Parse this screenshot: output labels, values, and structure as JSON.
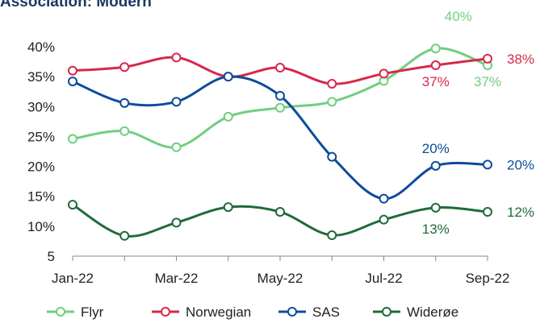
{
  "chart_data": {
    "type": "line",
    "title": "Association: Modern",
    "categories": [
      "Jan-22",
      null,
      "Mar-22",
      null,
      "May-22",
      null,
      "Jul-22",
      null,
      "Sep-22"
    ],
    "ylim": [
      5,
      40
    ],
    "yticks": [
      5,
      {
        "value": 10,
        "label": "10%"
      },
      {
        "value": 15,
        "label": "15%"
      },
      {
        "value": 20,
        "label": "20%"
      },
      {
        "value": 25,
        "label": "25%"
      },
      {
        "value": 30,
        "label": "30%"
      },
      {
        "value": 35,
        "label": "35%"
      },
      {
        "value": 40,
        "label": "40%"
      }
    ],
    "grid": false,
    "legend": "bottom",
    "series": [
      {
        "name": "Flyr",
        "color": "#6fcf7f",
        "values": [
          24.6,
          25.9,
          23.2,
          28.3,
          29.8,
          30.8,
          34.3,
          39.7,
          36.9
        ],
        "value_labels": [
          null,
          null,
          null,
          null,
          null,
          null,
          null,
          "40%",
          "37%"
        ]
      },
      {
        "name": "Norwegian",
        "color": "#d6294a",
        "values": [
          36.0,
          36.6,
          38.2,
          35.0,
          36.5,
          33.8,
          35.5,
          36.9,
          38.0
        ],
        "value_labels": [
          null,
          null,
          null,
          null,
          null,
          null,
          null,
          "37%",
          "38%"
        ]
      },
      {
        "name": "SAS",
        "color": "#0e4c99",
        "values": [
          34.2,
          30.6,
          30.8,
          35.0,
          31.8,
          21.6,
          14.6,
          20.1,
          20.3
        ],
        "value_labels": [
          null,
          null,
          null,
          null,
          null,
          null,
          null,
          "20%",
          "20%"
        ]
      },
      {
        "name": "Widerøe",
        "color": "#1f6b3a",
        "values": [
          13.6,
          8.4,
          10.6,
          13.2,
          12.4,
          8.5,
          11.1,
          13.1,
          12.4
        ],
        "value_labels": [
          null,
          null,
          null,
          null,
          null,
          null,
          null,
          "13%",
          "12%"
        ]
      }
    ]
  }
}
